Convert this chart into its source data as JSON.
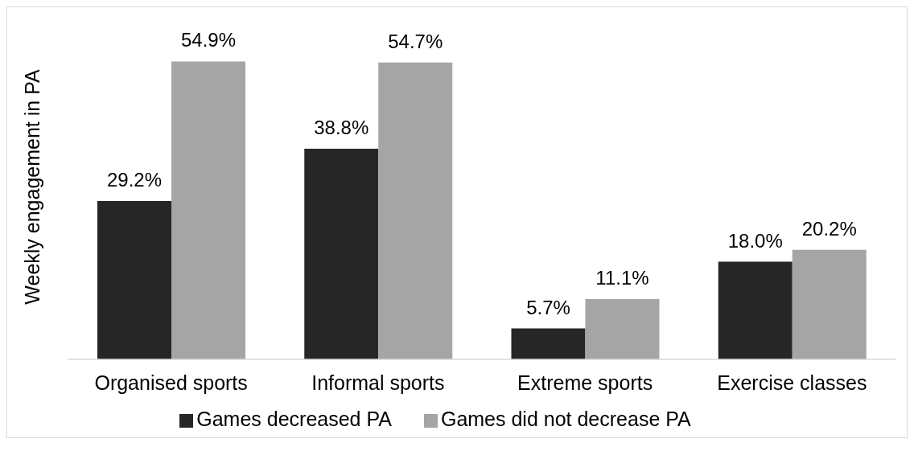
{
  "chart_data": {
    "type": "bar",
    "ylabel": "Weekly engagement in PA",
    "categories": [
      "Organised sports",
      "Informal sports",
      "Extreme sports",
      "Exercise classes"
    ],
    "series": [
      {
        "name": "Games decreased PA",
        "color": "#262626",
        "values": [
          29.2,
          38.8,
          5.7,
          18.0
        ],
        "value_labels": [
          "29.2%",
          "38.8%",
          "5.7%",
          "18.0%"
        ]
      },
      {
        "name": "Games did not decrease PA",
        "color": "#a5a5a5",
        "values": [
          54.9,
          54.7,
          11.1,
          20.2
        ],
        "value_labels": [
          "54.9%",
          "54.7%",
          "11.1%",
          "20.2%"
        ]
      }
    ],
    "legend": "bottom",
    "grid": false
  }
}
